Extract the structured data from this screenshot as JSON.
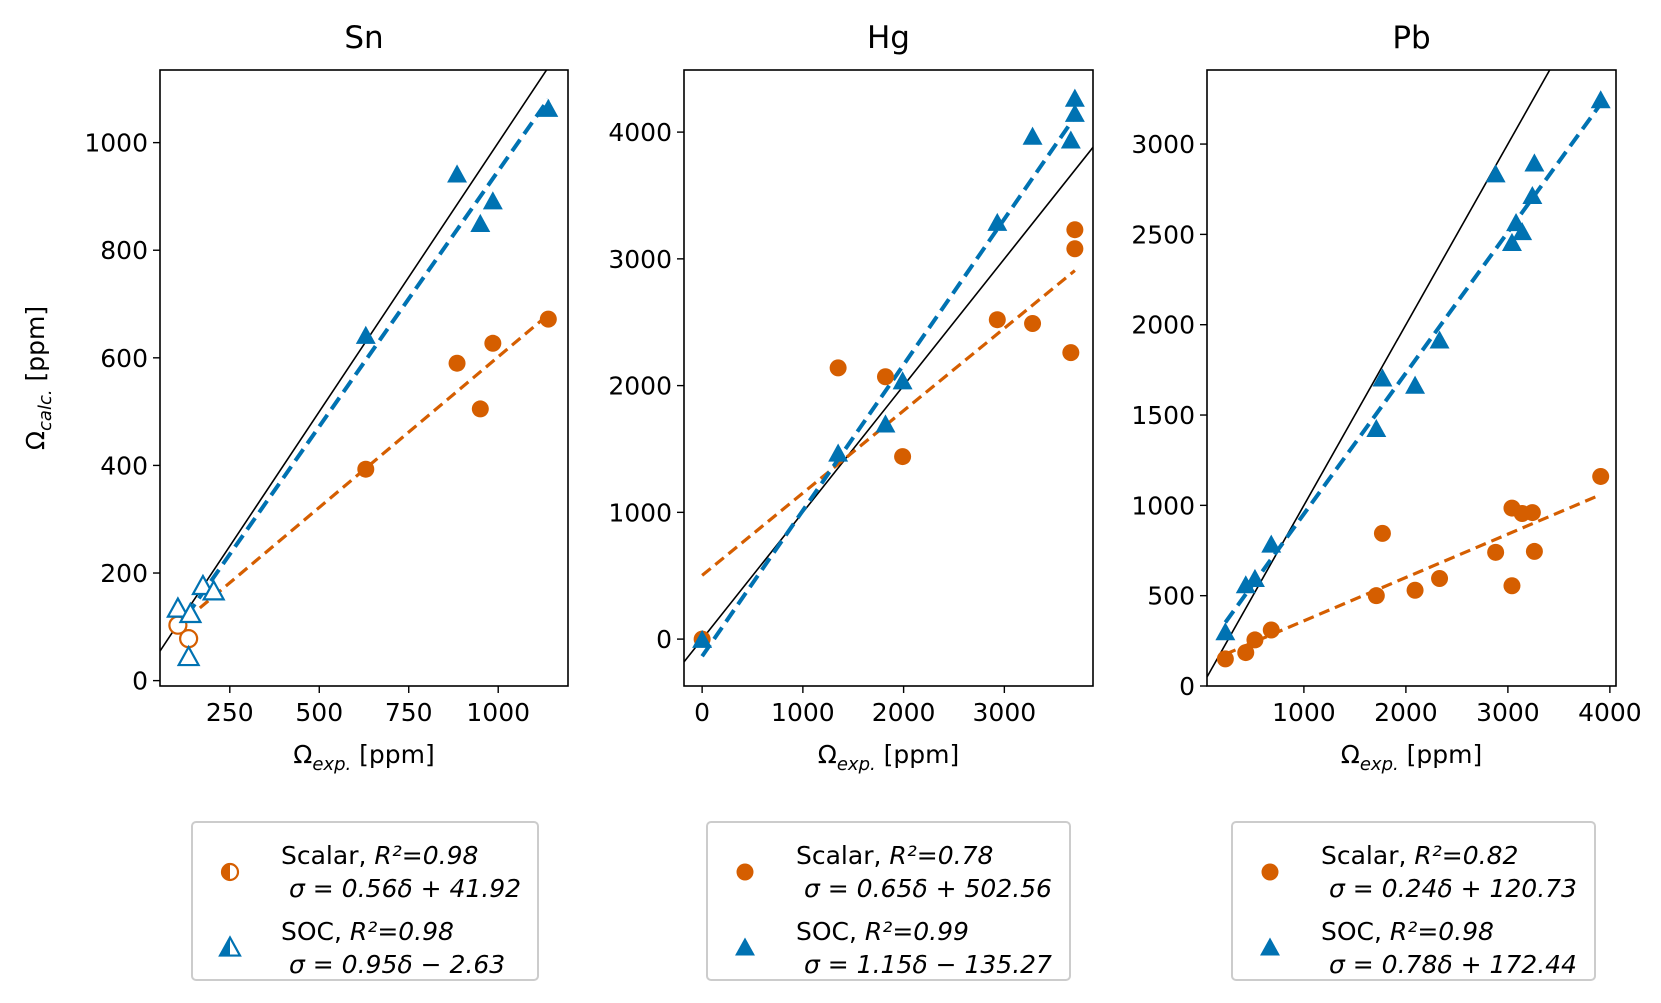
{
  "colors": {
    "scalar": "#D55E00",
    "soc": "#0072B2",
    "identity": "#000000"
  },
  "chart_data": [
    {
      "type": "scatter",
      "title": "Sn",
      "xlabel": "Ω_exp. [ppm]",
      "ylabel": "Ω_calc. [ppm]",
      "xlim": [
        55,
        1195
      ],
      "ylim": [
        -10,
        1135
      ],
      "xticks": [
        250,
        500,
        750,
        1000
      ],
      "yticks": [
        0,
        200,
        400,
        600,
        800,
        1000
      ],
      "grid": false,
      "legend_position": "below",
      "series": [
        {
          "kind": "scalar",
          "name": "Scalar",
          "r2_label": "R²=0.98",
          "fit_label": "σ = 0.56δ + 41.92",
          "slope": 0.56,
          "intercept": 41.92,
          "fit_x": [
            130,
            1140
          ],
          "points": [
            {
              "x": 105,
              "y": 103,
              "filled": false
            },
            {
              "x": 135,
              "y": 78,
              "filled": false
            },
            {
              "x": 630,
              "y": 393,
              "filled": true
            },
            {
              "x": 885,
              "y": 590,
              "filled": true
            },
            {
              "x": 950,
              "y": 505,
              "filled": true
            },
            {
              "x": 985,
              "y": 627,
              "filled": true
            },
            {
              "x": 1140,
              "y": 672,
              "filled": true
            }
          ]
        },
        {
          "kind": "soc",
          "name": "SOC",
          "r2_label": "R²=0.98",
          "fit_label": "σ = 0.95δ − 2.63",
          "slope": 0.95,
          "intercept": -2.63,
          "fit_x": [
            130,
            1140
          ],
          "points": [
            {
              "x": 105,
              "y": 133,
              "filled": false
            },
            {
              "x": 140,
              "y": 123,
              "filled": false
            },
            {
              "x": 135,
              "y": 43,
              "filled": false
            },
            {
              "x": 175,
              "y": 175,
              "filled": false
            },
            {
              "x": 205,
              "y": 165,
              "filled": false
            },
            {
              "x": 630,
              "y": 640,
              "filled": true
            },
            {
              "x": 885,
              "y": 940,
              "filled": true
            },
            {
              "x": 950,
              "y": 848,
              "filled": true
            },
            {
              "x": 985,
              "y": 890,
              "filled": true
            },
            {
              "x": 1140,
              "y": 1062,
              "filled": true
            }
          ]
        }
      ]
    },
    {
      "type": "scatter",
      "title": "Hg",
      "xlabel": "Ω_exp. [ppm]",
      "ylabel": "",
      "xlim": [
        -180,
        3880
      ],
      "ylim": [
        -370,
        4490
      ],
      "xticks": [
        0,
        1000,
        2000,
        3000
      ],
      "yticks": [
        0,
        1000,
        2000,
        3000,
        4000
      ],
      "grid": false,
      "legend_position": "below",
      "series": [
        {
          "kind": "scalar",
          "name": "Scalar",
          "r2_label": "R²=0.78",
          "fit_label": "σ = 0.65δ + 502.56",
          "slope": 0.65,
          "intercept": 502.56,
          "fit_x": [
            0,
            3700
          ],
          "points": [
            {
              "x": 0,
              "y": 0,
              "filled": true
            },
            {
              "x": 1350,
              "y": 2140,
              "filled": true
            },
            {
              "x": 1820,
              "y": 2070,
              "filled": true
            },
            {
              "x": 1990,
              "y": 1440,
              "filled": true
            },
            {
              "x": 2930,
              "y": 2520,
              "filled": true
            },
            {
              "x": 3280,
              "y": 2490,
              "filled": true
            },
            {
              "x": 3660,
              "y": 2260,
              "filled": true
            },
            {
              "x": 3700,
              "y": 3080,
              "filled": true
            },
            {
              "x": 3700,
              "y": 3230,
              "filled": true
            }
          ]
        },
        {
          "kind": "soc",
          "name": "SOC",
          "r2_label": "R²=0.99",
          "fit_label": "σ = 1.15δ − 135.27",
          "slope": 1.15,
          "intercept": -135.27,
          "fit_x": [
            0,
            3700
          ],
          "points": [
            {
              "x": 0,
              "y": -10,
              "filled": true
            },
            {
              "x": 1350,
              "y": 1460,
              "filled": true
            },
            {
              "x": 1820,
              "y": 1690,
              "filled": true
            },
            {
              "x": 1990,
              "y": 2030,
              "filled": true
            },
            {
              "x": 2930,
              "y": 3280,
              "filled": true
            },
            {
              "x": 3280,
              "y": 3960,
              "filled": true
            },
            {
              "x": 3660,
              "y": 3930,
              "filled": true
            },
            {
              "x": 3700,
              "y": 4140,
              "filled": true
            },
            {
              "x": 3700,
              "y": 4260,
              "filled": true
            }
          ]
        }
      ]
    },
    {
      "type": "scatter",
      "title": "Pb",
      "xlabel": "Ω_exp. [ppm]",
      "ylabel": "",
      "xlim": [
        50,
        4060
      ],
      "ylim": [
        0,
        3410
      ],
      "xticks": [
        1000,
        2000,
        3000,
        4000
      ],
      "yticks": [
        0,
        500,
        1000,
        1500,
        2000,
        2500,
        3000
      ],
      "grid": false,
      "legend_position": "below",
      "series": [
        {
          "kind": "scalar",
          "name": "Scalar",
          "r2_label": "R²=0.82",
          "fit_label": "σ = 0.24δ + 120.73",
          "slope": 0.24,
          "intercept": 120.73,
          "fit_x": [
            230,
            3890
          ],
          "points": [
            {
              "x": 230,
              "y": 150,
              "filled": true
            },
            {
              "x": 430,
              "y": 185,
              "filled": true
            },
            {
              "x": 520,
              "y": 255,
              "filled": true
            },
            {
              "x": 680,
              "y": 310,
              "filled": true
            },
            {
              "x": 1710,
              "y": 500,
              "filled": true
            },
            {
              "x": 1770,
              "y": 845,
              "filled": true
            },
            {
              "x": 2090,
              "y": 530,
              "filled": true
            },
            {
              "x": 2330,
              "y": 595,
              "filled": true
            },
            {
              "x": 2880,
              "y": 740,
              "filled": true
            },
            {
              "x": 3040,
              "y": 555,
              "filled": true
            },
            {
              "x": 3040,
              "y": 985,
              "filled": true
            },
            {
              "x": 3140,
              "y": 955,
              "filled": true
            },
            {
              "x": 3240,
              "y": 960,
              "filled": true
            },
            {
              "x": 3260,
              "y": 745,
              "filled": true
            },
            {
              "x": 3910,
              "y": 1160,
              "filled": true
            }
          ]
        },
        {
          "kind": "soc",
          "name": "SOC",
          "r2_label": "R²=0.98",
          "fit_label": "σ = 0.78δ + 172.44",
          "slope": 0.78,
          "intercept": 172.44,
          "fit_x": [
            230,
            3890
          ],
          "points": [
            {
              "x": 230,
              "y": 295,
              "filled": true
            },
            {
              "x": 430,
              "y": 555,
              "filled": true
            },
            {
              "x": 520,
              "y": 590,
              "filled": true
            },
            {
              "x": 680,
              "y": 780,
              "filled": true
            },
            {
              "x": 1710,
              "y": 1420,
              "filled": true
            },
            {
              "x": 1770,
              "y": 1700,
              "filled": true
            },
            {
              "x": 2090,
              "y": 1660,
              "filled": true
            },
            {
              "x": 2330,
              "y": 1910,
              "filled": true
            },
            {
              "x": 2880,
              "y": 2830,
              "filled": true
            },
            {
              "x": 3040,
              "y": 2450,
              "filled": true
            },
            {
              "x": 3080,
              "y": 2560,
              "filled": true
            },
            {
              "x": 3140,
              "y": 2510,
              "filled": true
            },
            {
              "x": 3240,
              "y": 2710,
              "filled": true
            },
            {
              "x": 3260,
              "y": 2890,
              "filled": true
            },
            {
              "x": 3910,
              "y": 3240,
              "filled": true
            }
          ]
        }
      ]
    }
  ]
}
